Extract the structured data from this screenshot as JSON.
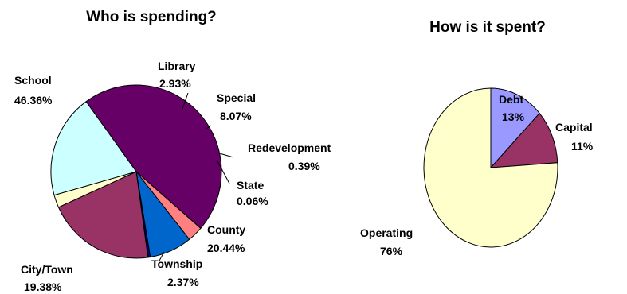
{
  "chart_data": [
    {
      "type": "pie",
      "title": "Who is spending?",
      "start_angle_deg": 126,
      "direction": "clockwise",
      "slices": [
        {
          "label": "School",
          "value_text": "46.36%",
          "value": 46.36,
          "color": "#660066"
        },
        {
          "label": "Library",
          "value_text": "2.93%",
          "value": 2.93,
          "color": "#ff8080"
        },
        {
          "label": "Special",
          "value_text": "8.07%",
          "value": 8.07,
          "color": "#0066cc"
        },
        {
          "label": "Redevelopment",
          "value_text": "0.39%",
          "value": 0.39,
          "color": "#000080"
        },
        {
          "label": "State",
          "value_text": "0.06%",
          "value": 0.06,
          "color": "#ff00ff"
        },
        {
          "label": "County",
          "value_text": "20.44%",
          "value": 20.44,
          "color": "#993366"
        },
        {
          "label": "Township",
          "value_text": "2.37%",
          "value": 2.37,
          "color": "#ffffcc"
        },
        {
          "label": "City/Town",
          "value_text": "19.38%",
          "value": 19.38,
          "color": "#ccffff"
        }
      ]
    },
    {
      "type": "pie",
      "title": "How is it spent?",
      "start_angle_deg": 90,
      "direction": "clockwise",
      "slices": [
        {
          "label": "Debt",
          "value_text": "13%",
          "value": 13,
          "color": "#9999ff"
        },
        {
          "label": "Capital",
          "value_text": "11%",
          "value": 11,
          "color": "#993366"
        },
        {
          "label": "Operating",
          "value_text": "76%",
          "value": 76,
          "color": "#ffffcc"
        }
      ]
    }
  ]
}
